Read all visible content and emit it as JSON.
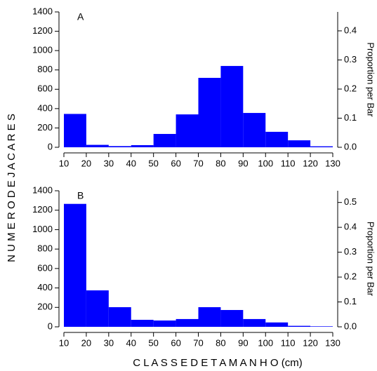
{
  "ylabel": "N U M E R O   D E   J A C A R E S",
  "xlabel": "C L A S S E  D E  T A M A N H O   (cm)",
  "chart_data": [
    {
      "type": "histogram",
      "label": "A",
      "y2label": "Proportion per Bar",
      "color": "#0000ff",
      "bins": [
        10,
        20,
        30,
        40,
        50,
        60,
        70,
        80,
        90,
        100,
        110,
        120,
        130
      ],
      "values": [
        345,
        25,
        12,
        22,
        138,
        340,
        718,
        841,
        355,
        160,
        72,
        10
      ],
      "xlim": [
        10,
        130
      ],
      "xticks": [
        10,
        20,
        30,
        40,
        50,
        60,
        70,
        80,
        90,
        100,
        110,
        120,
        130
      ],
      "ylim": [
        0,
        1400
      ],
      "yticks": [
        0,
        200,
        400,
        600,
        800,
        1000,
        1200,
        1400
      ],
      "y2lim": [
        0,
        0.465
      ],
      "y2ticks": [
        {
          "value": 0,
          "label": "0.0"
        },
        0.1,
        0.2,
        0.3,
        0.4
      ]
    },
    {
      "type": "histogram",
      "label": "B",
      "y2label": "Proportion per Bar",
      "color": "#0000ff",
      "bins": [
        10,
        20,
        30,
        40,
        50,
        60,
        70,
        80,
        90,
        100,
        110,
        120,
        130
      ],
      "values": [
        1265,
        375,
        202,
        72,
        65,
        80,
        202,
        173,
        80,
        45,
        10,
        5
      ],
      "xlim": [
        10,
        130
      ],
      "xticks": [
        10,
        20,
        30,
        40,
        50,
        60,
        70,
        80,
        90,
        100,
        110,
        120,
        130
      ],
      "ylim": [
        0,
        1400
      ],
      "yticks": [
        0,
        200,
        400,
        600,
        800,
        1000,
        1200,
        1400
      ],
      "y2lim": [
        0,
        0.547
      ],
      "y2ticks": [
        {
          "value": 0,
          "label": "0.0"
        },
        0.1,
        0.2,
        0.3,
        0.4,
        0.5
      ]
    }
  ]
}
